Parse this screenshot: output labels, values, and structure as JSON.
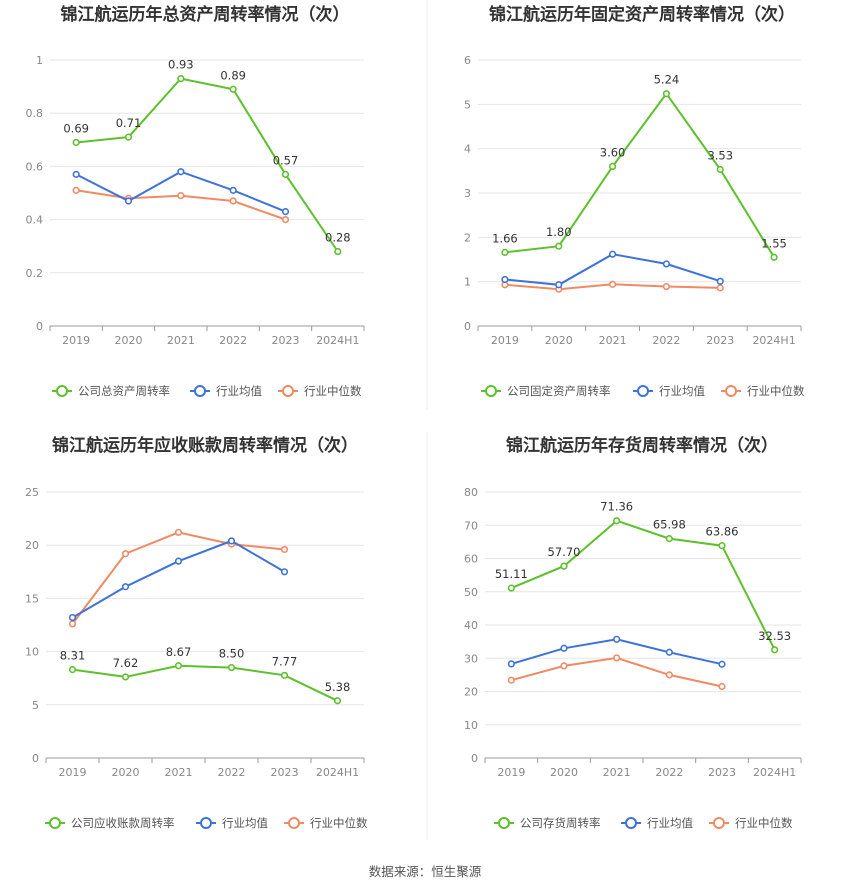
{
  "source": "数据来源：恒生聚源",
  "legend_common": [
    "行业均值",
    "行业中位数"
  ],
  "colors": {
    "company": "#5cc12a",
    "mean": "#3d72d8",
    "median": "#f08a63",
    "grid": "#e6e6e6",
    "axis": "#999999"
  },
  "chart_data": [
    {
      "type": "line",
      "title": "锦江航运历年总资产周转率情况（次）",
      "categories": [
        "2019",
        "2020",
        "2021",
        "2022",
        "2023",
        "2024H1"
      ],
      "ylim": [
        0,
        1
      ],
      "yticks": [
        "0",
        "0.2",
        "0.4",
        "0.6",
        "0.8",
        "1"
      ],
      "ytick_values": [
        0,
        0.2,
        0.4,
        0.6,
        0.8,
        1
      ],
      "series": [
        {
          "name": "公司总资产周转率",
          "values": [
            0.69,
            0.71,
            0.93,
            0.89,
            0.57,
            0.28
          ],
          "labels": [
            "0.69",
            "0.71",
            "0.93",
            "0.89",
            "0.57",
            "0.28"
          ]
        },
        {
          "name": "行业均值",
          "values": [
            0.57,
            0.47,
            0.58,
            0.51,
            0.43,
            null
          ]
        },
        {
          "name": "行业中位数",
          "values": [
            0.51,
            0.48,
            0.49,
            0.47,
            0.4,
            null
          ]
        }
      ]
    },
    {
      "type": "line",
      "title": "锦江航运历年固定资产周转率情况（次）",
      "categories": [
        "2019",
        "2020",
        "2021",
        "2022",
        "2023",
        "2024H1"
      ],
      "ylim": [
        0,
        6
      ],
      "yticks": [
        "0",
        "1",
        "2",
        "3",
        "4",
        "5",
        "6"
      ],
      "ytick_values": [
        0,
        1,
        2,
        3,
        4,
        5,
        6
      ],
      "series": [
        {
          "name": "公司固定资产周转率",
          "values": [
            1.66,
            1.8,
            3.6,
            5.24,
            3.53,
            1.55
          ],
          "labels": [
            "1.66",
            "1.80",
            "3.60",
            "5.24",
            "3.53",
            "1.55"
          ]
        },
        {
          "name": "行业均值",
          "values": [
            1.05,
            0.93,
            1.62,
            1.4,
            1.01,
            null
          ]
        },
        {
          "name": "行业中位数",
          "values": [
            0.93,
            0.83,
            0.94,
            0.89,
            0.86,
            null
          ]
        }
      ]
    },
    {
      "type": "line",
      "title": "锦江航运历年应收账款周转率情况（次）",
      "categories": [
        "2019",
        "2020",
        "2021",
        "2022",
        "2023",
        "2024H1"
      ],
      "ylim": [
        0,
        25
      ],
      "yticks": [
        "0",
        "5",
        "10",
        "15",
        "20",
        "25"
      ],
      "ytick_values": [
        0,
        5,
        10,
        15,
        20,
        25
      ],
      "series": [
        {
          "name": "公司应收账款周转率",
          "values": [
            8.31,
            7.62,
            8.67,
            8.5,
            7.77,
            5.38
          ],
          "labels": [
            "8.31",
            "7.62",
            "8.67",
            "8.50",
            "7.77",
            "5.38"
          ]
        },
        {
          "name": "行业均值",
          "values": [
            13.2,
            16.1,
            18.5,
            20.4,
            17.5,
            null
          ]
        },
        {
          "name": "行业中位数",
          "values": [
            12.6,
            19.2,
            21.2,
            20.1,
            19.6,
            null
          ]
        }
      ]
    },
    {
      "type": "line",
      "title": "锦江航运历年存货周转率情况（次）",
      "categories": [
        "2019",
        "2020",
        "2021",
        "2022",
        "2023",
        "2024H1"
      ],
      "ylim": [
        0,
        80
      ],
      "yticks": [
        "0",
        "10",
        "20",
        "30",
        "40",
        "50",
        "60",
        "70",
        "80"
      ],
      "ytick_values": [
        0,
        10,
        20,
        30,
        40,
        50,
        60,
        70,
        80
      ],
      "series": [
        {
          "name": "公司存货周转率",
          "values": [
            51.11,
            57.7,
            71.36,
            65.98,
            63.86,
            32.53
          ],
          "labels": [
            "51.11",
            "57.70",
            "71.36",
            "65.98",
            "63.86",
            "32.53"
          ]
        },
        {
          "name": "行业均值",
          "values": [
            28.3,
            33.0,
            35.7,
            31.8,
            28.2,
            null
          ]
        },
        {
          "name": "行业中位数",
          "values": [
            23.4,
            27.7,
            30.1,
            25.0,
            21.5,
            null
          ]
        }
      ]
    }
  ]
}
